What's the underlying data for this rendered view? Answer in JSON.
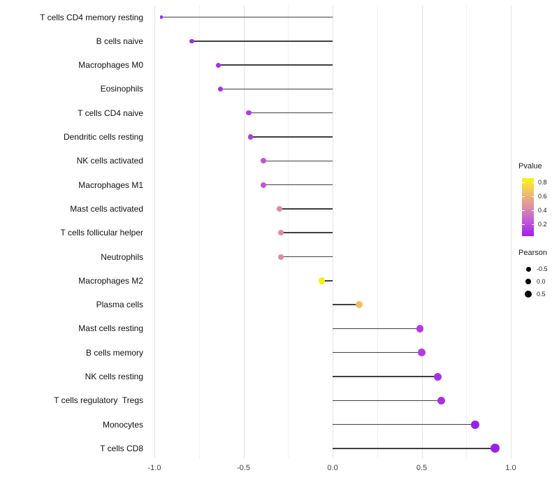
{
  "legend": {
    "pvalue_title": "Pvalue",
    "pvalue_ticks": [
      "0.8",
      "0.6",
      "0.4",
      "0.2"
    ],
    "gradient_bottom_to_top": [
      "#A020F0",
      "#C05CD8",
      "#DE8FA2",
      "#EFC06C",
      "#F8F50F"
    ],
    "pearson_title": "Pearson",
    "pearson_items": [
      {
        "label": "-0.5",
        "size": 7
      },
      {
        "label": "0.0",
        "size": 8.5
      },
      {
        "label": "0.5",
        "size": 10
      }
    ]
  },
  "chart_data": {
    "type": "scatter",
    "subtype": "lollipop",
    "orientation": "horizontal",
    "title": "",
    "xlabel": "",
    "ylabel": "",
    "xlim": [
      -1.1,
      1.1
    ],
    "grid": "on",
    "legend_position": "right",
    "x_axis": {
      "ticks": [
        {
          "label": "-1.0",
          "value": -1.0
        },
        {
          "label": "-0.5",
          "value": -0.5
        },
        {
          "label": "0.0",
          "value": 0.0
        },
        {
          "label": "0.5",
          "value": 0.5
        },
        {
          "label": "1.0",
          "value": 1.0
        }
      ],
      "minor": [
        -0.75,
        -0.25,
        0.25,
        0.75
      ]
    },
    "color_encoding": "Pvalue (purple=low, yellow=high)",
    "size_encoding": "Pearson (larger = higher correlation)",
    "rows": [
      {
        "label": "T cells CD4 memory resting",
        "pearson": -0.96,
        "pvalue_approx": 0.05,
        "color": "#9B2DF0",
        "size": 4.5
      },
      {
        "label": "B cells naive",
        "pearson": -0.79,
        "pvalue_approx": 0.05,
        "color": "#9A2BEC",
        "size": 6.5
      },
      {
        "label": "Macrophages M0",
        "pearson": -0.64,
        "pvalue_approx": 0.06,
        "color": "#A430E9",
        "size": 7
      },
      {
        "label": "Eosinophils",
        "pearson": -0.63,
        "pvalue_approx": 0.06,
        "color": "#A430E9",
        "size": 7
      },
      {
        "label": "T cells CD4 naive",
        "pearson": -0.47,
        "pvalue_approx": 0.1,
        "color": "#AE3DE2",
        "size": 7.5
      },
      {
        "label": "Dendritic cells resting",
        "pearson": -0.46,
        "pvalue_approx": 0.1,
        "color": "#AE3DE2",
        "size": 7.5
      },
      {
        "label": "NK cells activated",
        "pearson": -0.39,
        "pvalue_approx": 0.25,
        "color": "#C353D6",
        "size": 8
      },
      {
        "label": "Macrophages M1",
        "pearson": -0.39,
        "pvalue_approx": 0.25,
        "color": "#C253D7",
        "size": 8
      },
      {
        "label": "Mast cells activated",
        "pearson": -0.3,
        "pvalue_approx": 0.45,
        "color": "#DE8C9E",
        "size": 8
      },
      {
        "label": "T cells follicular helper",
        "pearson": -0.29,
        "pvalue_approx": 0.45,
        "color": "#DE8C9E",
        "size": 8
      },
      {
        "label": "Neutrophils",
        "pearson": -0.29,
        "pvalue_approx": 0.45,
        "color": "#DE8C9E",
        "size": 8
      },
      {
        "label": "Macrophages M2",
        "pearson": -0.06,
        "pvalue_approx": 0.85,
        "color": "#F4F00F",
        "size": 9.5
      },
      {
        "label": "Plasma cells",
        "pearson": 0.15,
        "pvalue_approx": 0.65,
        "color": "#EEC05C",
        "size": 10
      },
      {
        "label": "Mast cells resting",
        "pearson": 0.49,
        "pvalue_approx": 0.15,
        "color": "#B23CE1",
        "size": 10.5
      },
      {
        "label": "B cells memory",
        "pearson": 0.5,
        "pvalue_approx": 0.15,
        "color": "#B23CE1",
        "size": 10.5
      },
      {
        "label": "NK cells resting",
        "pearson": 0.59,
        "pvalue_approx": 0.08,
        "color": "#A92FE6",
        "size": 11
      },
      {
        "label": "T cells regulatory  Tregs",
        "pearson": 0.61,
        "pvalue_approx": 0.08,
        "color": "#A92FE6",
        "size": 11.5
      },
      {
        "label": "Monocytes",
        "pearson": 0.8,
        "pvalue_approx": 0.02,
        "color": "#9C1FF0",
        "size": 12
      },
      {
        "label": "T cells CD8",
        "pearson": 0.91,
        "pvalue_approx": 0.02,
        "color": "#9C1FF0",
        "size": 13
      }
    ]
  }
}
